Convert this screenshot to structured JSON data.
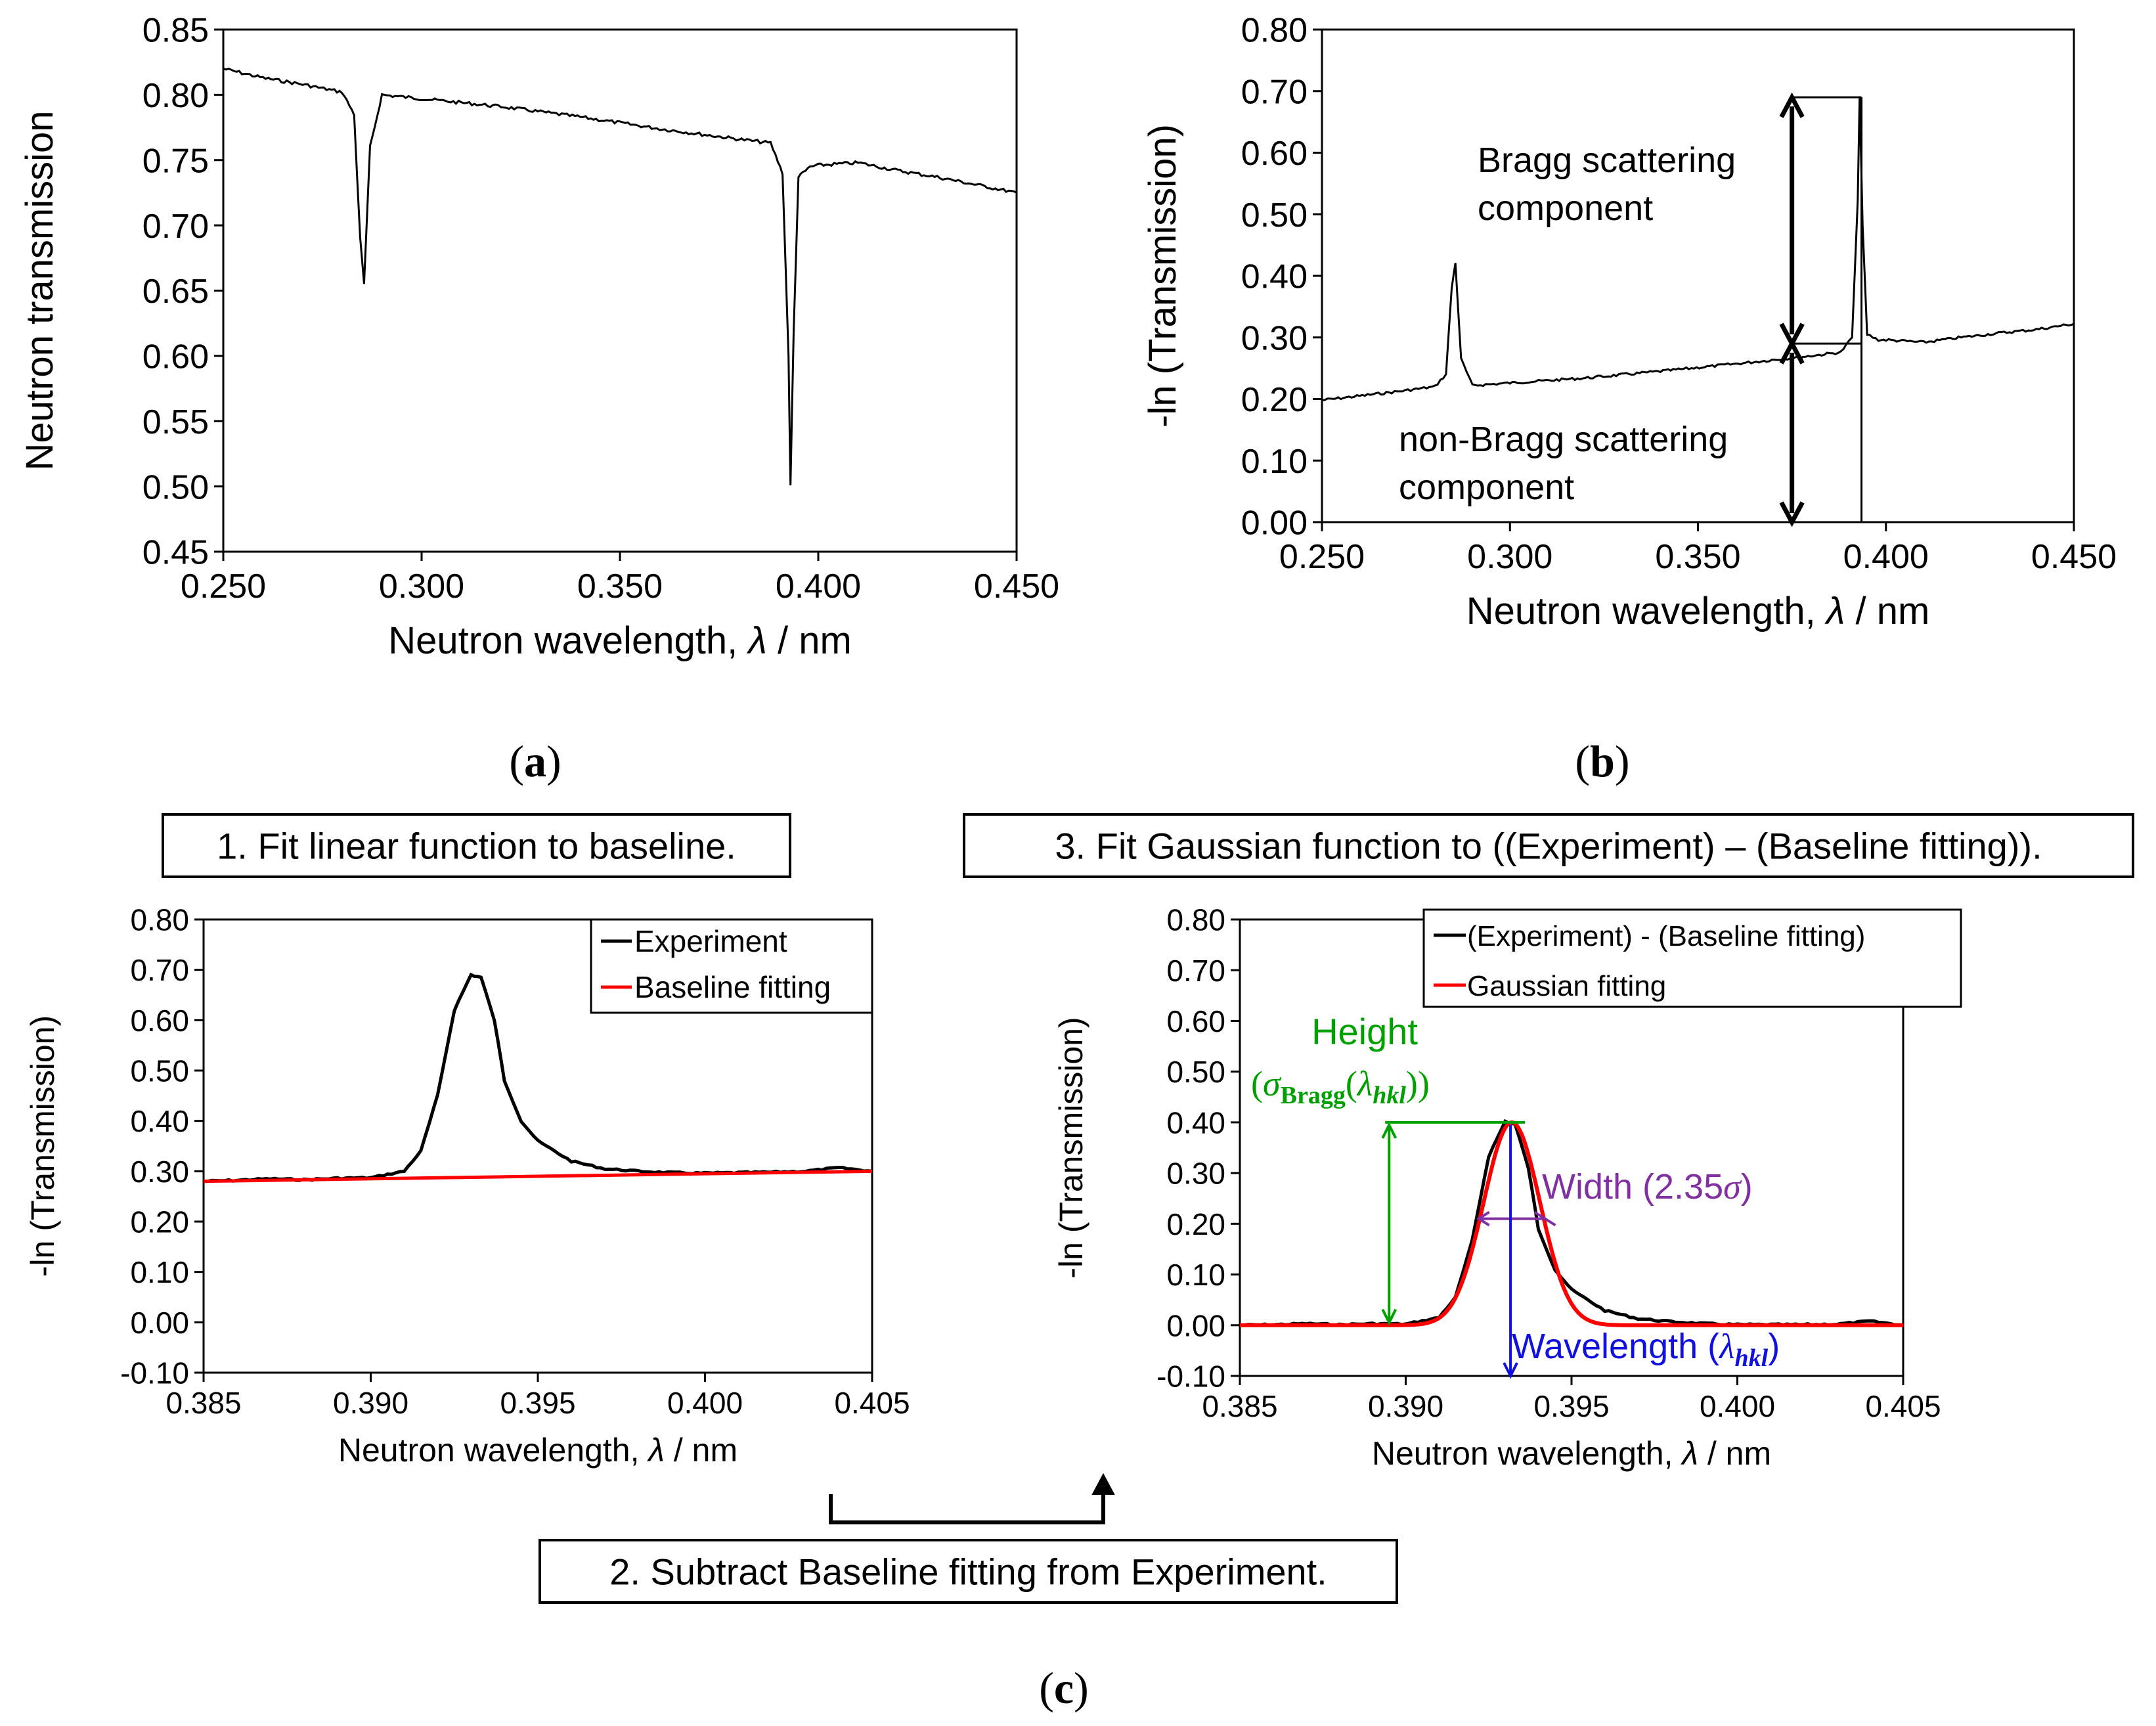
{
  "colors": {
    "experiment": "#000000",
    "baseline": "#ff0000",
    "gaussian": "#ff0000",
    "height": "#00a000",
    "width": "#8030a0",
    "wavelength": "#1010e0"
  },
  "chart_data": [
    {
      "id": "a",
      "panel_label": "(a)",
      "type": "line",
      "xlabel": "Neutron wavelength, λ / nm",
      "ylabel": "Neutron transmission",
      "xlim": [
        0.25,
        0.45
      ],
      "ylim": [
        0.45,
        0.85
      ],
      "xticks": [
        "0.250",
        "0.300",
        "0.350",
        "0.400",
        "0.450"
      ],
      "yticks": [
        "0.45",
        "0.50",
        "0.55",
        "0.60",
        "0.65",
        "0.70",
        "0.75",
        "0.80",
        "0.85"
      ],
      "series": [
        {
          "name": "Transmission",
          "x": [
            0.25,
            0.26,
            0.27,
            0.28,
            0.283,
            0.2845,
            0.2855,
            0.287,
            0.29,
            0.3,
            0.32,
            0.34,
            0.36,
            0.38,
            0.388,
            0.391,
            0.3925,
            0.393,
            0.3938,
            0.395,
            0.398,
            0.4,
            0.41,
            0.42,
            0.43,
            0.44,
            0.45
          ],
          "y": [
            0.82,
            0.813,
            0.808,
            0.802,
            0.785,
            0.69,
            0.655,
            0.76,
            0.8,
            0.797,
            0.791,
            0.783,
            0.774,
            0.766,
            0.763,
            0.74,
            0.6,
            0.5,
            0.62,
            0.737,
            0.745,
            0.746,
            0.748,
            0.742,
            0.737,
            0.731,
            0.725
          ]
        }
      ]
    },
    {
      "id": "b",
      "panel_label": "(b)",
      "type": "line",
      "xlabel": "Neutron wavelength, λ / nm",
      "ylabel": "-ln (Transmission)",
      "xlim": [
        0.25,
        0.45
      ],
      "ylim": [
        0.0,
        0.8
      ],
      "xticks": [
        "0.250",
        "0.300",
        "0.350",
        "0.400",
        "0.450"
      ],
      "yticks": [
        "0.00",
        "0.10",
        "0.20",
        "0.30",
        "0.40",
        "0.50",
        "0.60",
        "0.70",
        "0.80"
      ],
      "series": [
        {
          "name": "-ln (Transmission)",
          "x": [
            0.25,
            0.26,
            0.27,
            0.28,
            0.283,
            0.2845,
            0.2855,
            0.287,
            0.29,
            0.3,
            0.32,
            0.34,
            0.36,
            0.38,
            0.388,
            0.391,
            0.3925,
            0.393,
            0.3938,
            0.395,
            0.398,
            0.4,
            0.41,
            0.42,
            0.43,
            0.44,
            0.45
          ],
          "y": [
            0.198,
            0.205,
            0.212,
            0.22,
            0.24,
            0.38,
            0.422,
            0.265,
            0.222,
            0.226,
            0.234,
            0.245,
            0.257,
            0.27,
            0.276,
            0.3,
            0.52,
            0.69,
            0.48,
            0.305,
            0.296,
            0.296,
            0.292,
            0.3,
            0.307,
            0.313,
            0.322
          ]
        }
      ],
      "annotations": {
        "bragg": [
          "Bragg scattering",
          "component"
        ],
        "non_bragg": [
          "non-Bragg scattering",
          "component"
        ],
        "baseline_at_peak": 0.29,
        "peak_value": 0.69,
        "arrow_x": 0.375,
        "peak_x": 0.3935
      }
    },
    {
      "id": "c1",
      "type": "line",
      "xlabel": "Neutron wavelength, λ / nm",
      "ylabel": "-ln (Transmission)",
      "xlim": [
        0.385,
        0.405
      ],
      "ylim": [
        -0.1,
        0.8
      ],
      "xticks": [
        "0.385",
        "0.390",
        "0.395",
        "0.400",
        "0.405"
      ],
      "yticks": [
        "-0.10",
        "0.00",
        "0.10",
        "0.20",
        "0.30",
        "0.40",
        "0.50",
        "0.60",
        "0.70",
        "0.80"
      ],
      "series": [
        {
          "name": "Experiment",
          "x": [
            0.385,
            0.386,
            0.387,
            0.388,
            0.389,
            0.39,
            0.391,
            0.3915,
            0.392,
            0.3925,
            0.393,
            0.3933,
            0.3937,
            0.394,
            0.3945,
            0.395,
            0.396,
            0.397,
            0.398,
            0.399,
            0.4,
            0.401,
            0.402,
            0.403,
            0.404,
            0.405
          ],
          "y": [
            0.28,
            0.282,
            0.285,
            0.283,
            0.286,
            0.287,
            0.3,
            0.34,
            0.45,
            0.62,
            0.69,
            0.685,
            0.6,
            0.48,
            0.4,
            0.36,
            0.32,
            0.305,
            0.3,
            0.297,
            0.296,
            0.297,
            0.298,
            0.3,
            0.307,
            0.3
          ]
        },
        {
          "name": "Baseline fitting",
          "x": [
            0.385,
            0.405
          ],
          "y": [
            0.28,
            0.3
          ]
        }
      ],
      "legend": [
        "Experiment",
        "Baseline fitting"
      ]
    },
    {
      "id": "c2",
      "type": "line",
      "xlabel": "Neutron wavelength, λ / nm",
      "ylabel": "-ln (Transmission)",
      "xlim": [
        0.385,
        0.405
      ],
      "ylim": [
        -0.1,
        0.8
      ],
      "xticks": [
        "0.385",
        "0.390",
        "0.395",
        "0.400",
        "0.405"
      ],
      "yticks": [
        "-0.10",
        "0.00",
        "0.10",
        "0.20",
        "0.30",
        "0.40",
        "0.50",
        "0.60",
        "0.70",
        "0.80"
      ],
      "series": [
        {
          "name": "(Experiment) - (Baseline fitting)",
          "x": [
            0.385,
            0.386,
            0.387,
            0.388,
            0.389,
            0.39,
            0.391,
            0.3915,
            0.392,
            0.3925,
            0.393,
            0.3933,
            0.3937,
            0.394,
            0.3945,
            0.395,
            0.396,
            0.397,
            0.398,
            0.399,
            0.4,
            0.401,
            0.402,
            0.403,
            0.404,
            0.405
          ],
          "y": [
            0.0,
            0.001,
            0.003,
            0.001,
            0.003,
            0.002,
            0.015,
            0.055,
            0.165,
            0.333,
            0.402,
            0.396,
            0.31,
            0.19,
            0.11,
            0.07,
            0.029,
            0.013,
            0.007,
            0.003,
            0.001,
            0.001,
            0.001,
            0.002,
            0.008,
            0.0
          ]
        },
        {
          "name": "Gaussian fitting",
          "gaussian": {
            "mu": 0.3932,
            "height": 0.4,
            "sigma": 0.00085
          }
        }
      ],
      "legend": [
        "(Experiment) - (Baseline fitting)",
        "Gaussian fitting"
      ],
      "annotations": {
        "height_label": "Height",
        "width_label": "Width (2.35σ)",
        "wavelength_label": "Wavelength (λ",
        "wavelength_sub": "hkl",
        "height_formula_sub": "Bragg"
      }
    }
  ],
  "steps": {
    "step1": "1. Fit linear function to baseline.",
    "step2": "2. Subtract Baseline fitting from Experiment.",
    "step3": "3. Fit Gaussian function to ((Experiment) – (Baseline fitting))."
  },
  "panel_c_label": "(c)"
}
